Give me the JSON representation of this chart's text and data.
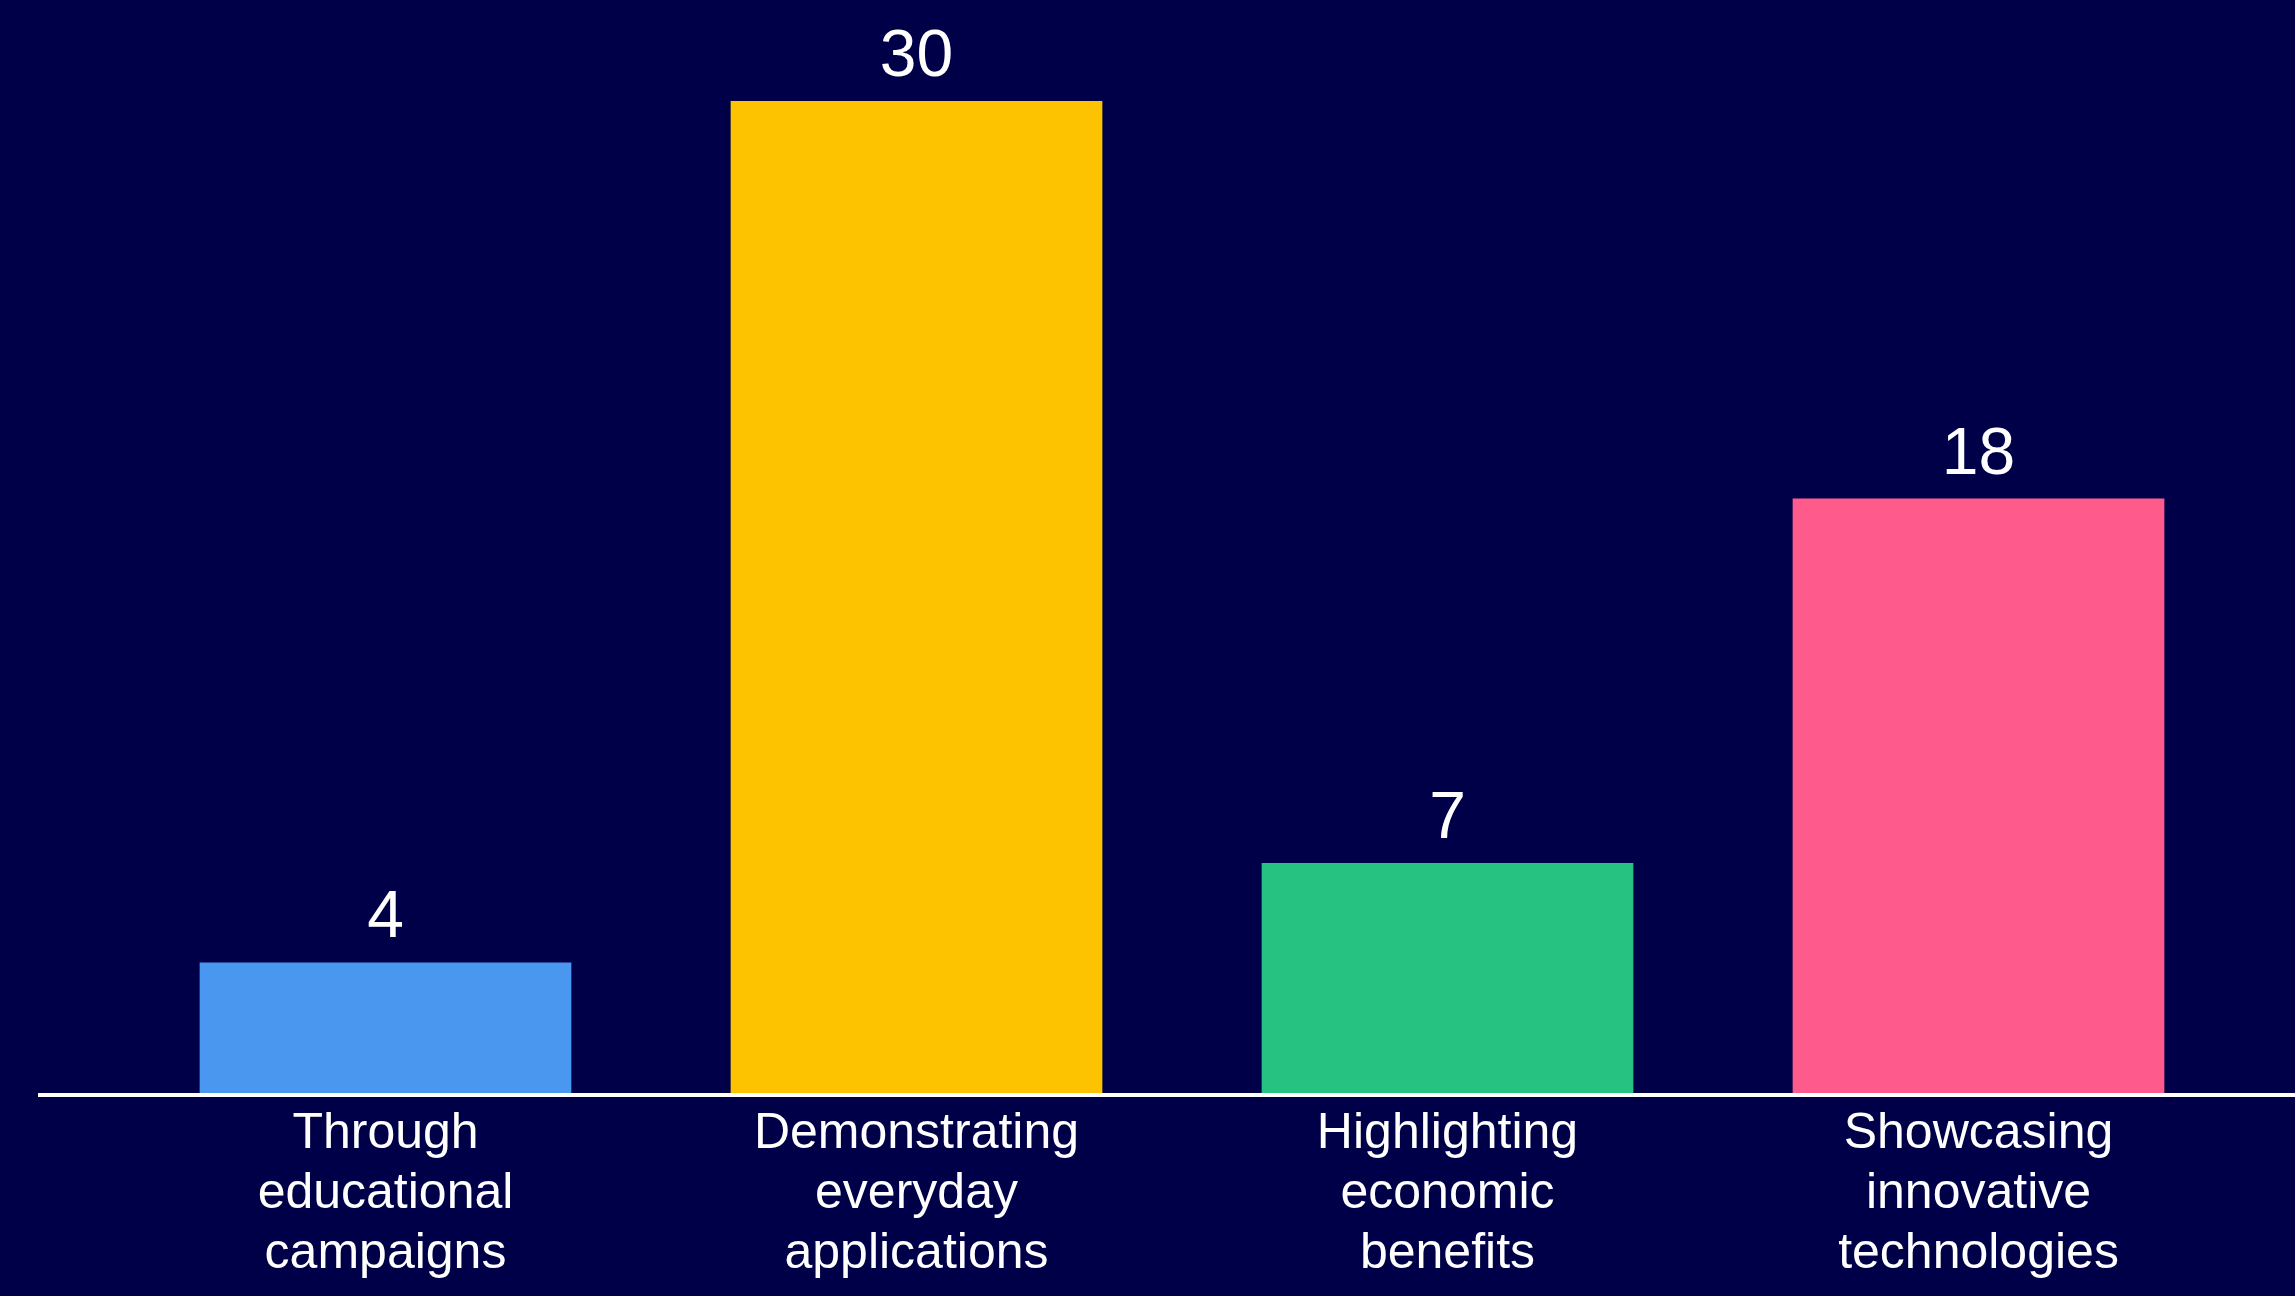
{
  "chart_data": {
    "type": "bar",
    "categories": [
      "Through educational campaigns",
      "Demonstrating everyday applications",
      "Highlighting economic benefits",
      "Showcasing innovative technologies"
    ],
    "values": [
      4,
      30,
      7,
      18
    ],
    "colors": [
      "#4a97ef",
      "#fdc300",
      "#26c281",
      "#ff5a8c"
    ],
    "data_labels": true,
    "tick_labels": "x"
  }
}
